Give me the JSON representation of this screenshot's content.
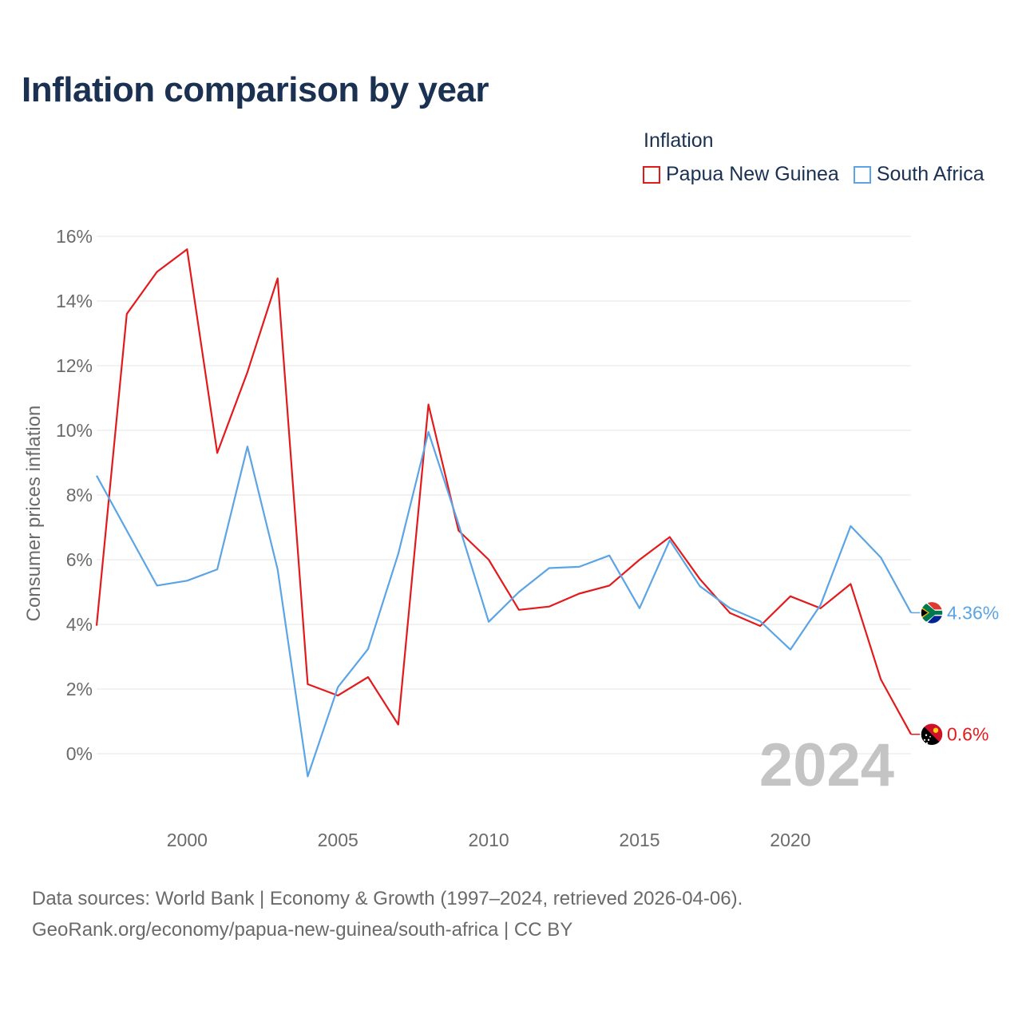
{
  "title": "Inflation comparison by year",
  "legend": {
    "title": "Inflation",
    "items": [
      {
        "name": "Papua New Guinea",
        "color": "#e31a1c"
      },
      {
        "name": "South Africa",
        "color": "#5ba4e5"
      }
    ]
  },
  "source": {
    "line1": "Data sources: World Bank | Economy & Growth (1997–2024, retrieved 2026-04-06).",
    "line2": "GeoRank.org/economy/papua-new-guinea/south-africa | CC BY"
  },
  "chart_data": {
    "type": "line",
    "title": "Inflation comparison by year",
    "xlabel": "",
    "ylabel": "Consumer prices inflation",
    "xlim": [
      1997,
      2024
    ],
    "ylim": [
      -1.5,
      16.5
    ],
    "grid": true,
    "legend_position": "top-right",
    "watermark_year": "2024",
    "x_ticks": [
      2000,
      2005,
      2010,
      2015,
      2020
    ],
    "x_tick_labels": [
      "2000",
      "2005",
      "2010",
      "2015",
      "2020"
    ],
    "y_ticks": [
      0,
      2,
      4,
      6,
      8,
      10,
      12,
      14,
      16
    ],
    "y_tick_labels": [
      "0%",
      "2%",
      "4%",
      "6%",
      "8%",
      "10%",
      "12%",
      "14%",
      "16%"
    ],
    "x": [
      1997,
      1998,
      1999,
      2000,
      2001,
      2002,
      2003,
      2004,
      2005,
      2006,
      2007,
      2008,
      2009,
      2010,
      2011,
      2012,
      2013,
      2014,
      2015,
      2016,
      2017,
      2018,
      2019,
      2020,
      2021,
      2022,
      2023,
      2024
    ],
    "series": [
      {
        "name": "Papua New Guinea",
        "color": "#e31a1c",
        "end_label": "0.6%",
        "values": [
          3.96,
          13.6,
          14.9,
          15.6,
          9.3,
          11.8,
          14.7,
          2.15,
          1.8,
          2.37,
          0.9,
          10.8,
          6.9,
          6.0,
          4.45,
          4.55,
          4.95,
          5.2,
          6.0,
          6.7,
          5.4,
          4.35,
          3.95,
          4.87,
          4.5,
          5.25,
          2.3,
          0.6
        ]
      },
      {
        "name": "South Africa",
        "color": "#5ba4e5",
        "end_label": "4.36%",
        "values": [
          8.6,
          6.9,
          5.2,
          5.35,
          5.7,
          9.5,
          5.7,
          -0.7,
          2.06,
          3.24,
          6.18,
          9.95,
          7.1,
          4.08,
          5.0,
          5.74,
          5.78,
          6.13,
          4.5,
          6.6,
          5.18,
          4.5,
          4.1,
          3.22,
          4.6,
          7.04,
          6.07,
          4.36
        ]
      }
    ]
  }
}
